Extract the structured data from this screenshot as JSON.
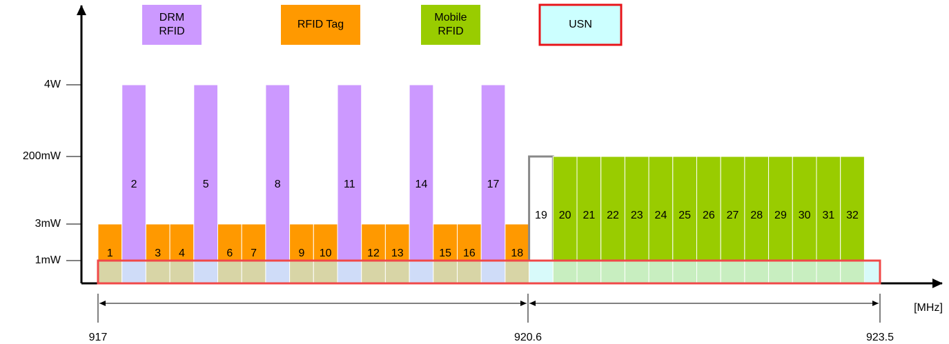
{
  "legend": [
    {
      "lines": [
        "DRM",
        "RFID"
      ]
    },
    {
      "lines": [
        "RFID Tag"
      ]
    },
    {
      "lines": [
        "Mobile",
        "RFID"
      ]
    },
    {
      "lines": [
        "USN"
      ]
    }
  ],
  "levels": [
    "4W",
    "200mW",
    "3mW",
    "1mW"
  ],
  "channels": [
    "1",
    "2",
    "3",
    "4",
    "5",
    "6",
    "7",
    "8",
    "9",
    "10",
    "11",
    "12",
    "13",
    "14",
    "15",
    "16",
    "17",
    "18",
    "19",
    "20",
    "21",
    "22",
    "23",
    "24",
    "25",
    "26",
    "27",
    "28",
    "29",
    "30",
    "31",
    "32"
  ],
  "frequencies": [
    "917",
    "920.6",
    "923.5"
  ],
  "unit": "[MHz]"
}
